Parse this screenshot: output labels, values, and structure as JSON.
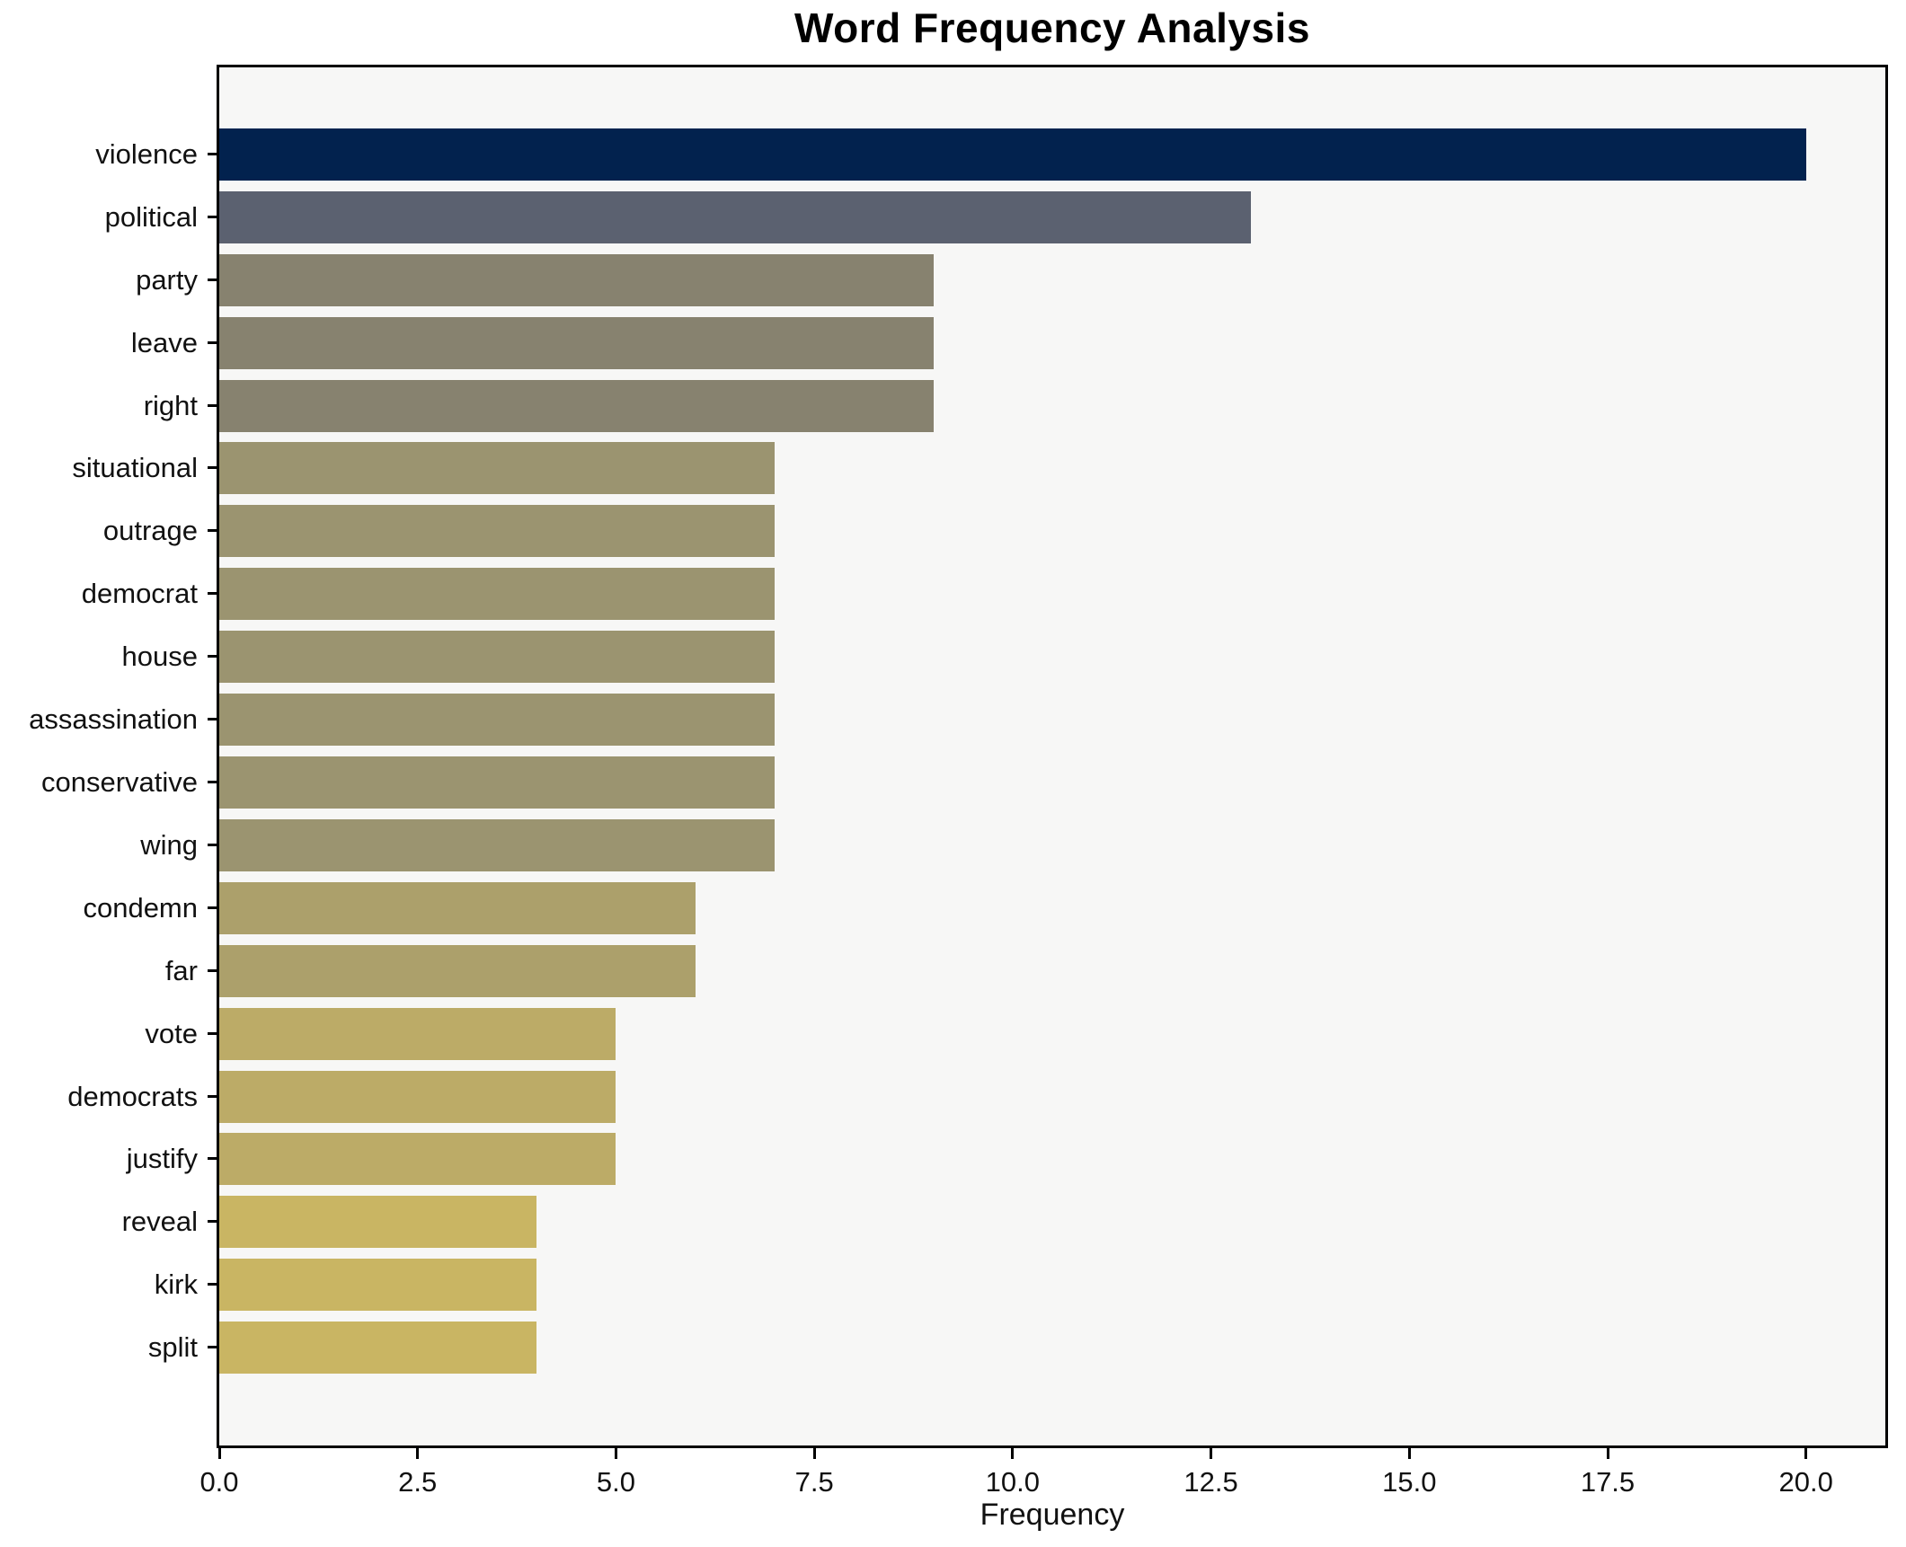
{
  "title": "Word Frequency Analysis",
  "chart_data": {
    "type": "bar",
    "orientation": "horizontal",
    "title": "Word Frequency Analysis",
    "xlabel": "Frequency",
    "ylabel": "",
    "categories": [
      "violence",
      "political",
      "party",
      "leave",
      "right",
      "situational",
      "outrage",
      "democrat",
      "house",
      "assassination",
      "conservative",
      "wing",
      "condemn",
      "far",
      "vote",
      "democrats",
      "justify",
      "reveal",
      "kirk",
      "split"
    ],
    "values": [
      20,
      13,
      9,
      9,
      9,
      7,
      7,
      7,
      7,
      7,
      7,
      7,
      6,
      6,
      5,
      5,
      5,
      4,
      4,
      4
    ],
    "bar_colors": [
      "#02224e",
      "#5b6170",
      "#87826f",
      "#87826f",
      "#87826f",
      "#9b9470",
      "#9b9470",
      "#9b9470",
      "#9b9470",
      "#9b9470",
      "#9b9470",
      "#9b9470",
      "#aca06b",
      "#aca06b",
      "#bcab67",
      "#bcab67",
      "#bcab67",
      "#c9b563",
      "#c9b563",
      "#c9b563"
    ],
    "xlim": [
      0,
      21
    ],
    "xticks": [
      0,
      2.5,
      5,
      7.5,
      10,
      12.5,
      15,
      17.5,
      20
    ],
    "xtick_labels": [
      "0.0",
      "2.5",
      "5.0",
      "7.5",
      "10.0",
      "12.5",
      "15.0",
      "17.5",
      "20.0"
    ],
    "grid": false,
    "legend": "none",
    "plot_bg": "#f7f7f6",
    "figure_bg": "#ffffff",
    "spine_color": "#000000"
  }
}
